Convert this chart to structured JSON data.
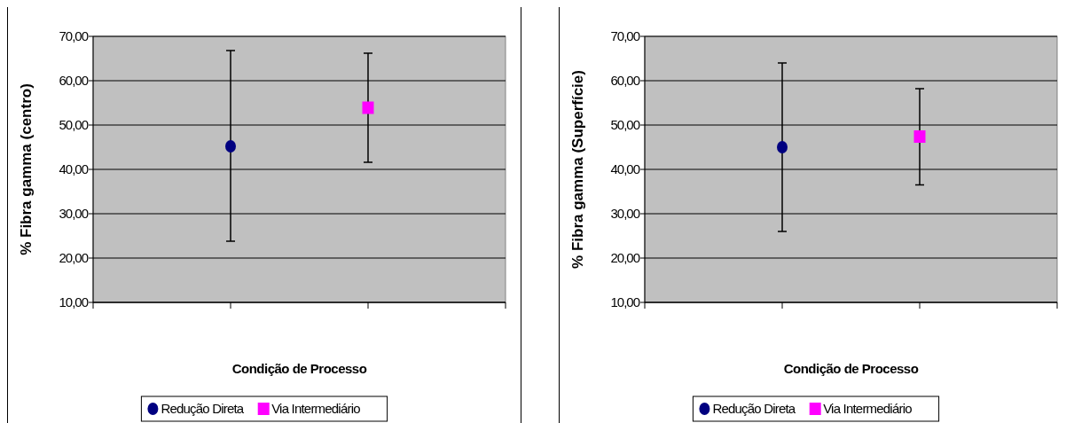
{
  "chart_data": [
    {
      "type": "scatter",
      "categories": [
        null,
        null
      ],
      "xlabel": "Condição de Processo",
      "ylabel": "% Fibra gamma (centro)",
      "ylim": [
        10,
        70
      ],
      "yticks": [
        {
          "value": 10,
          "label": "10,00"
        },
        {
          "value": 20,
          "label": "20,00"
        },
        {
          "value": 30,
          "label": "30,00"
        },
        {
          "value": 40,
          "label": "40,00"
        },
        {
          "value": 50,
          "label": "50,00"
        },
        {
          "value": 60,
          "label": "60,00"
        },
        {
          "value": 70,
          "label": "70,00"
        }
      ],
      "grid": "y",
      "legend": "bottom",
      "series": [
        {
          "name": "Redução Direta",
          "color": "#000080",
          "marker": "circle",
          "values": [
            45.2,
            null
          ],
          "errors": [
            [
              23.8,
              66.8
            ],
            null
          ]
        },
        {
          "name": "Via Intermediário",
          "color": "#ff00ff",
          "marker": "square",
          "values": [
            null,
            53.9
          ],
          "errors": [
            null,
            [
              41.6,
              66.2
            ]
          ]
        }
      ]
    },
    {
      "type": "scatter",
      "categories": [
        null,
        null
      ],
      "xlabel": "Condição de Processo",
      "ylabel": "% Fibra gamma (Superfície)",
      "ylim": [
        10,
        70
      ],
      "yticks": [
        {
          "value": 10,
          "label": "10,00"
        },
        {
          "value": 20,
          "label": "20,00"
        },
        {
          "value": 30,
          "label": "30,00"
        },
        {
          "value": 40,
          "label": "40,00"
        },
        {
          "value": 50,
          "label": "50,00"
        },
        {
          "value": 60,
          "label": "60,00"
        },
        {
          "value": 70,
          "label": "70,00"
        }
      ],
      "grid": "y",
      "legend": "bottom",
      "series": [
        {
          "name": "Redução Direta",
          "color": "#000080",
          "marker": "circle",
          "values": [
            45.0,
            null
          ],
          "errors": [
            [
              26.0,
              64.0
            ],
            null
          ]
        },
        {
          "name": "Via Intermediário",
          "color": "#ff00ff",
          "marker": "square",
          "values": [
            null,
            47.4
          ],
          "errors": [
            null,
            [
              36.5,
              58.2
            ]
          ]
        }
      ]
    }
  ]
}
